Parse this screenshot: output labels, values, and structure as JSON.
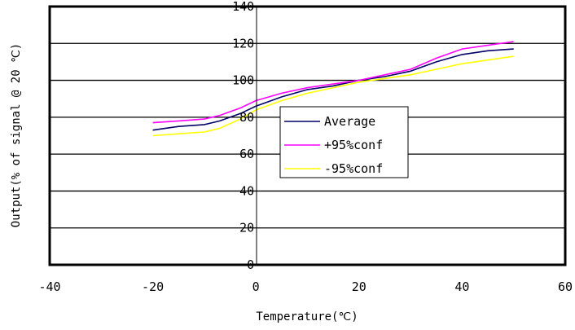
{
  "chart_data": {
    "type": "line",
    "title": "",
    "xlabel": "Temperature(℃)",
    "ylabel": "Output(% of signal @ 20 ℃)",
    "xlim": [
      -40,
      60
    ],
    "ylim": [
      0,
      140
    ],
    "xticks": [
      -40,
      -20,
      0,
      20,
      40,
      60
    ],
    "yticks": [
      0,
      20,
      40,
      60,
      80,
      100,
      120,
      140
    ],
    "grid": "horizontal",
    "legend": "center",
    "series": [
      {
        "name": "Average",
        "color": "#000066",
        "x": [
          -20,
          -15,
          -10,
          -7,
          -3,
          0,
          5,
          10,
          15,
          20,
          25,
          30,
          35,
          40,
          45,
          50
        ],
        "y": [
          73,
          75,
          76,
          78,
          82,
          86,
          91,
          95,
          97,
          100,
          102,
          105,
          110,
          114,
          116,
          117
        ]
      },
      {
        "name": "+95%conf",
        "color": "#ff00ff",
        "x": [
          -20,
          -15,
          -10,
          -7,
          -3,
          0,
          5,
          10,
          15,
          20,
          25,
          30,
          35,
          40,
          45,
          50
        ],
        "y": [
          77,
          78,
          79,
          81,
          85,
          89,
          93,
          96,
          98,
          100,
          103,
          106,
          112,
          117,
          119,
          121
        ]
      },
      {
        "name": "-95%conf",
        "color": "#ffff00",
        "x": [
          -20,
          -15,
          -10,
          -7,
          -3,
          0,
          5,
          10,
          15,
          20,
          25,
          30,
          35,
          40,
          45,
          50
        ],
        "y": [
          70,
          71,
          72,
          74,
          79,
          84,
          89,
          93,
          96,
          99,
          101,
          103,
          106,
          109,
          111,
          113
        ]
      }
    ]
  }
}
